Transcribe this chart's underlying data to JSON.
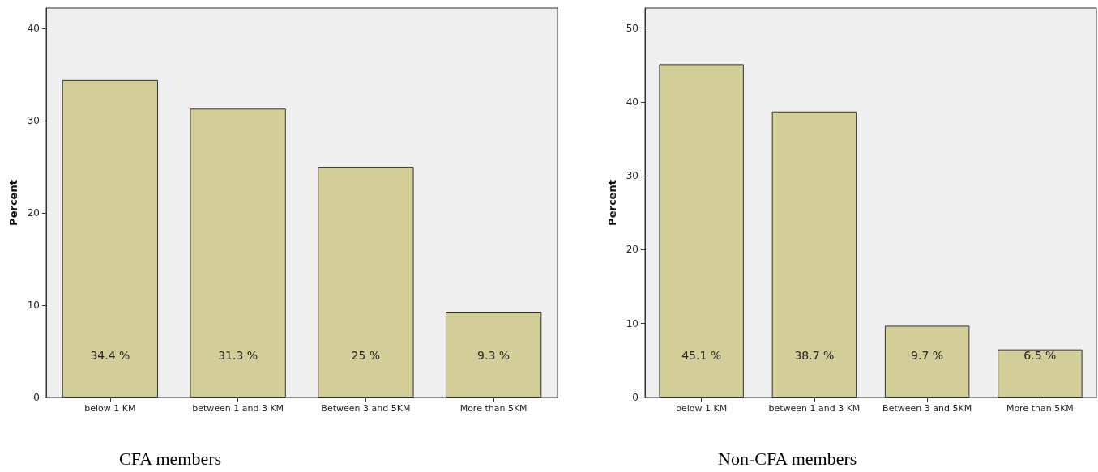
{
  "chart_data": [
    {
      "type": "bar",
      "ylabel": "Percent",
      "categories": [
        "below 1 KM",
        "between 1 and 3 KM",
        "Between 3 and 5KM",
        "More than 5KM"
      ],
      "values": [
        34.4,
        31.3,
        25,
        9.3
      ],
      "value_labels": [
        "34.4 %",
        "31.3 %",
        "25 %",
        "9.3 %"
      ],
      "color": "#d3cd98",
      "ylim": [
        0,
        42.2
      ],
      "yticks": [
        0,
        10,
        20,
        30,
        40
      ],
      "grid": false,
      "annotations": [
        "CFA members"
      ]
    },
    {
      "type": "bar",
      "ylabel": "Percent",
      "categories": [
        "below 1 KM",
        "between 1 and 3 KM",
        "Between 3 and 5KM",
        "More than 5KM"
      ],
      "values": [
        45.1,
        38.7,
        9.7,
        6.5
      ],
      "value_labels": [
        "45.1 %",
        "38.7 %",
        "9.7 %",
        "6.5 %"
      ],
      "color": "#d3cd98",
      "ylim": [
        0,
        52.7
      ],
      "yticks": [
        0,
        10,
        20,
        30,
        40,
        50
      ],
      "grid": false,
      "annotations": [
        "Non-CFA members"
      ]
    }
  ]
}
